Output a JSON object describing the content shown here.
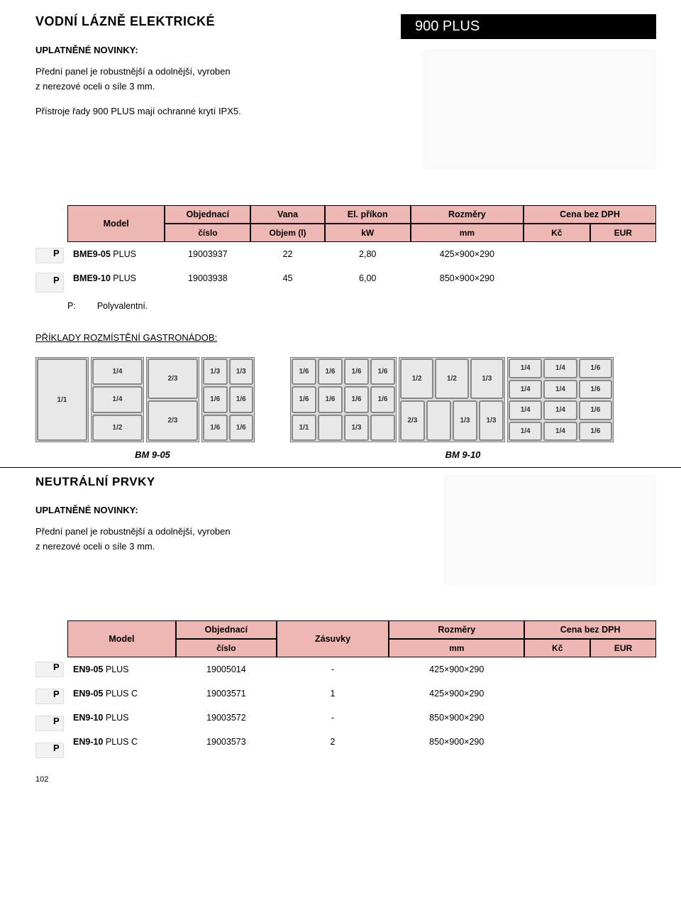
{
  "badge": "900 PLUS",
  "section1": {
    "title": "VODNÍ LÁZNĚ ELEKTRICKÉ",
    "subheading": "UPLATNĚNÉ NOVINKY:",
    "intro": [
      "Přední panel je robustnější a odolnější, vyroben",
      "z nerezové oceli o síle 3 mm.",
      "",
      "Přístroje řady 900 PLUS mají ochranné krytí IPX5."
    ],
    "table": {
      "headers": {
        "model": "Model",
        "col1_top": "Objednací",
        "col1_sub": "číslo",
        "col2_top": "Vana",
        "col2_sub": "Objem (l)",
        "col3_top": "El. příkon",
        "col3_sub": "kW",
        "col4_top": "Rozměry",
        "col4_sub": "mm",
        "col5_top": "Cena bez DPH",
        "col5_sub_a": "Kč",
        "col5_sub_b": "EUR"
      },
      "rows": [
        {
          "p": "P",
          "model": "BME9-05",
          "suffix": "PLUS",
          "c1": "19003937",
          "c2": "22",
          "c3": "2,80",
          "c4": "425×900×290"
        },
        {
          "p": "P",
          "model": "BME9-10",
          "suffix": "PLUS",
          "c1": "19003938",
          "c2": "45",
          "c3": "6,00",
          "c4": "850×900×290"
        }
      ],
      "note_k": "P:",
      "note_v": "Polyvalentní."
    },
    "gastro_heading": "PŘÍKLADY ROZMÍSTĚNÍ GASTRONÁDOB:",
    "gastro_label_a": "BM 9-05",
    "gastro_label_b": "BM 9-10",
    "gn_layouts_a": [
      [
        [
          "1/1"
        ]
      ],
      [
        [
          "1/4"
        ],
        [
          "1/4"
        ],
        [
          "1/2"
        ]
      ],
      [
        [
          "2/3"
        ],
        [
          "2/3"
        ]
      ],
      [
        [
          "1/3",
          "1/3"
        ],
        [
          "1/6",
          "1/6"
        ],
        [
          "1/6",
          "1/6"
        ]
      ]
    ],
    "gn_layouts_b": [
      [
        [
          "1/6",
          "1/6",
          "1/6",
          "1/6"
        ],
        [
          "1/6",
          "1/6",
          "1/6",
          "1/6"
        ],
        [
          "1/1",
          "",
          "1/3",
          ""
        ]
      ],
      [
        [
          "1/2",
          "1/2",
          "1/3"
        ],
        [
          "2/3",
          "",
          "1/3",
          "1/3"
        ]
      ],
      [
        [
          "1/4",
          "1/4",
          "1/6"
        ],
        [
          "1/4",
          "1/4",
          "1/6"
        ],
        [
          "1/4",
          "1/4",
          "1/6"
        ],
        [
          "1/4",
          "1/4",
          "1/6"
        ]
      ]
    ]
  },
  "section2": {
    "title": "NEUTRÁLNÍ PRVKY",
    "subheading": "UPLATNĚNÉ NOVINKY:",
    "intro": [
      "Přední panel je robustnější a odolnější, vyroben",
      "z nerezové oceli o síle 3 mm."
    ],
    "table": {
      "headers": {
        "model": "Model",
        "col1_top": "Objednací",
        "col1_sub": "číslo",
        "col2_top": "Zásuvky",
        "col2_sub": "",
        "col3_top": "Rozměry",
        "col3_sub": "mm",
        "col4_top": "Cena bez DPH",
        "col4_sub_a": "Kč",
        "col4_sub_b": "EUR"
      },
      "rows": [
        {
          "p": "P",
          "model": "EN9-05",
          "suffix": "PLUS",
          "c1": "19005014",
          "c2": "-",
          "c3": "425×900×290"
        },
        {
          "p": "P",
          "model": "EN9-05",
          "suffix": "PLUS C",
          "c1": "19003571",
          "c2": "1",
          "c3": "425×900×290"
        },
        {
          "p": "P",
          "model": "EN9-10",
          "suffix": "PLUS",
          "c1": "19003572",
          "c2": "-",
          "c3": "850×900×290"
        },
        {
          "p": "P",
          "model": "EN9-10",
          "suffix": "PLUS C",
          "c1": "19003573",
          "c2": "2",
          "c3": "850×900×290"
        }
      ]
    }
  },
  "page_number": "102",
  "colors": {
    "header_bg": "#efb7b3",
    "badge_bg": "#000000",
    "badge_fg": "#ffffff"
  }
}
